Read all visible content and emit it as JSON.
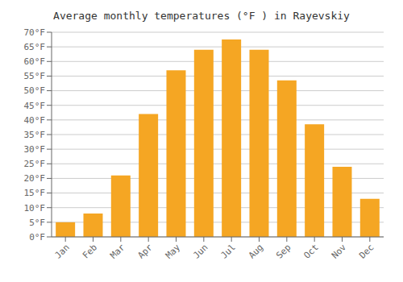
{
  "chart_data": {
    "type": "bar",
    "title": "Average monthly temperatures (°F ) in Rayevskiy",
    "categories": [
      "Jan",
      "Feb",
      "Mar",
      "Apr",
      "May",
      "Jun",
      "Jul",
      "Aug",
      "Sep",
      "Oct",
      "Nov",
      "Dec"
    ],
    "values": [
      5.0,
      8.0,
      21.0,
      42.0,
      57.0,
      64.0,
      67.5,
      64.0,
      53.5,
      38.5,
      24.0,
      13.0
    ],
    "color": "#F5A623",
    "ylim": [
      0,
      70
    ],
    "yticks": [
      {
        "value": 0,
        "label": "0°F"
      },
      {
        "value": 5,
        "label": "5°F"
      },
      {
        "value": 10,
        "label": "10°F"
      },
      {
        "value": 15,
        "label": "15°F"
      },
      {
        "value": 20,
        "label": "20°F"
      },
      {
        "value": 25,
        "label": "25°F"
      },
      {
        "value": 30,
        "label": "30°F"
      },
      {
        "value": 35,
        "label": "35°F"
      },
      {
        "value": 40,
        "label": "40°F"
      },
      {
        "value": 45,
        "label": "45°F"
      },
      {
        "value": 50,
        "label": "50°F"
      },
      {
        "value": 55,
        "label": "55°F"
      },
      {
        "value": 60,
        "label": "60°F"
      },
      {
        "value": 65,
        "label": "65°F"
      },
      {
        "value": 70,
        "label": "70°F"
      }
    ],
    "grid": true
  }
}
